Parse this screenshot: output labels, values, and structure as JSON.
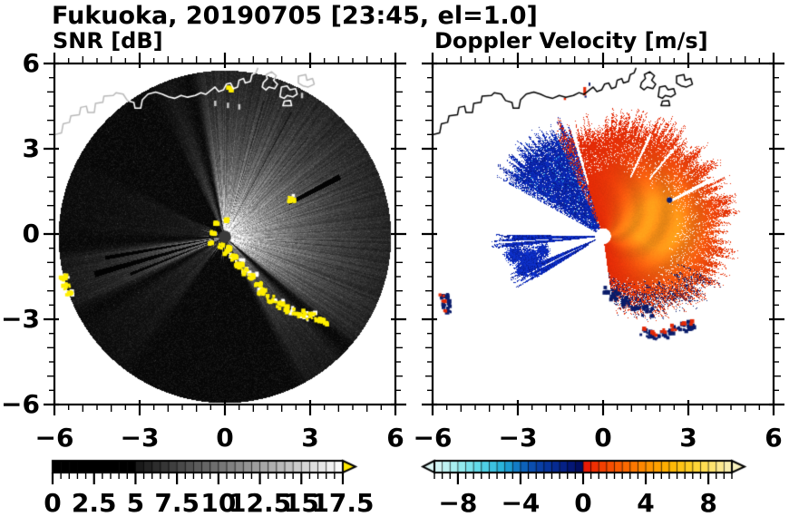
{
  "figure": {
    "title": "Fukuoka, 20190705 [23:45, el=1.0]",
    "background": "#ffffff"
  },
  "chart_data": {
    "type": "heatmap",
    "subtype": "dual_radar_ppi",
    "figure_title": "Fukuoka, 20190705 [23:45, el=1.0]",
    "station": "Fukuoka",
    "date": "20190705",
    "time": "23:45",
    "elevation_deg": 1.0,
    "axes": {
      "xlim": [
        -6,
        6
      ],
      "ylim": [
        -6,
        6
      ],
      "xticks": [
        -6,
        -3,
        0,
        3,
        6
      ],
      "xtick_labels": [
        "−6",
        "−3",
        "0",
        "3",
        "6"
      ],
      "yticks": [
        6,
        3,
        0,
        -3,
        -6
      ],
      "ytick_labels": [
        "6",
        "3",
        "0",
        "−3",
        "−6"
      ],
      "minor_tick_step": 0.5,
      "grid": false
    },
    "panels": [
      {
        "id": "snr",
        "title": "SNR [dB]",
        "colorbar": {
          "range": [
            0,
            17.5
          ],
          "major_ticks": [
            0,
            2.5,
            5,
            7.5,
            10,
            12.5,
            15,
            17.5
          ],
          "tick_labels": [
            "0",
            "2.5",
            "5",
            "7.5",
            "10",
            "12.5",
            "15",
            "17.5"
          ],
          "minor_step": 0.5,
          "palette": "grayscale black-to-white",
          "black_below": 5,
          "ramp": [
            [
              5,
              "#161616"
            ],
            [
              17.5,
              "#ffffff"
            ]
          ],
          "overflow_arrow_color": "#ffe800"
        },
        "radar": {
          "center": [
            0,
            -0.1
          ],
          "radius": 5.88,
          "fan_decay": 2.6,
          "echo_sectors": [
            {
              "from": -65,
              "to": -42,
              "amp": 0.5
            },
            {
              "from": -42,
              "to": 103,
              "amp": 0.95
            },
            {
              "from": 103,
              "to": 118,
              "amp": 0.3
            },
            {
              "from": 150,
              "to": 182,
              "amp": 0.1
            },
            {
              "from": 183,
              "to": 209,
              "amp": 0.55
            },
            {
              "from": 209,
              "to": 237,
              "amp": 0.16
            }
          ],
          "shadow_rays": [
            {
              "az": 27.5,
              "hw": 1.3,
              "rmin": 2.55,
              "rmax": 4.6,
              "mult": 0.07
            },
            {
              "az": 190,
              "hw": 0.9,
              "rmin": 0.4,
              "rmax": 4.3,
              "mult": 0.07
            },
            {
              "az": 196,
              "hw": 1.3,
              "rmin": 0.4,
              "rmax": 4.8,
              "mult": 0.07
            },
            {
              "az": 201.5,
              "hw": 0.8,
              "rmin": 0.6,
              "rmax": 3.6,
              "mult": 0.1
            },
            {
              "az": 62,
              "hw": 0.4,
              "rmin": 0.6,
              "rmax": 5.0,
              "mult": 0.55
            },
            {
              "az": 74,
              "hw": 0.35,
              "rmin": 0.8,
              "rmax": 5.0,
              "mult": 0.6
            },
            {
              "az": 50,
              "hw": 0.3,
              "rmin": 1.0,
              "rmax": 4.6,
              "mult": 0.6
            }
          ],
          "clutter_color": "#ffef00",
          "clutter_blobs": [
            [
              -0.12,
              -0.42,
              0.1,
              0
            ],
            [
              0.08,
              -0.62,
              0.12,
              1
            ],
            [
              0.3,
              -0.85,
              0.13,
              1
            ],
            [
              0.52,
              -1.08,
              0.14,
              1
            ],
            [
              0.72,
              -1.32,
              0.13,
              1
            ],
            [
              0.95,
              -1.52,
              0.12,
              1
            ],
            [
              1.18,
              -1.78,
              0.14,
              0
            ],
            [
              1.3,
              -2.05,
              0.13,
              1
            ],
            [
              1.58,
              -2.28,
              0.15,
              0
            ],
            [
              1.92,
              -2.5,
              0.16,
              1
            ],
            [
              2.3,
              -2.68,
              0.16,
              1
            ],
            [
              2.7,
              -2.82,
              0.17,
              1
            ],
            [
              3.05,
              -2.95,
              0.16,
              1
            ],
            [
              3.35,
              -3.06,
              0.13,
              0
            ],
            [
              3.54,
              -3.12,
              0.09,
              0
            ],
            [
              -5.72,
              -1.55,
              0.12,
              1
            ],
            [
              -5.62,
              -1.85,
              0.13,
              0
            ],
            [
              -5.5,
              -2.12,
              0.12,
              1
            ],
            [
              2.35,
              1.22,
              0.12,
              1
            ],
            [
              0.18,
              5.12,
              0.07,
              0
            ],
            [
              -0.42,
              0.05,
              0.06,
              0
            ],
            [
              -0.3,
              0.38,
              0.05,
              0
            ],
            [
              0.08,
              0.48,
              0.05,
              0
            ],
            [
              -0.5,
              -0.3,
              0.06,
              0
            ],
            [
              0.15,
              -0.5,
              0.06,
              0
            ]
          ],
          "ship_dots": [
            [
              -0.35,
              4.62
            ],
            [
              0.1,
              4.55
            ],
            [
              0.5,
              4.5
            ],
            [
              2.72,
              4.9
            ]
          ],
          "center_dot": {
            "color": "#3a3a3a",
            "radius": 0.22
          }
        }
      },
      {
        "id": "velocity",
        "title": "Doppler Velocity [m/s]",
        "colorbar": {
          "range": [
            -9.5,
            9.5
          ],
          "major_ticks": [
            -8,
            -4,
            0,
            4,
            8
          ],
          "tick_labels": [
            "−8",
            "−4",
            "0",
            "4",
            "8"
          ],
          "minor_step": 0.5,
          "palette_negative_stops": [
            [
              -9.5,
              "#def7f5"
            ],
            [
              -8,
              "#9eeef0"
            ],
            [
              -6.5,
              "#57d7e8"
            ],
            [
              -5,
              "#22acd8"
            ],
            [
              -4,
              "#0e6cc0"
            ],
            [
              -3,
              "#0a44aa"
            ],
            [
              -2,
              "#073098"
            ],
            [
              -1,
              "#051c80"
            ],
            [
              0,
              "#020a56"
            ]
          ],
          "palette_positive_stops": [
            [
              0,
              "#e61008"
            ],
            [
              1,
              "#f23a02"
            ],
            [
              2.5,
              "#fc6200"
            ],
            [
              4,
              "#ff8f00"
            ],
            [
              5.5,
              "#ffb400"
            ],
            [
              7,
              "#ffd22a"
            ],
            [
              8,
              "#ffe160"
            ],
            [
              9.5,
              "#f7f0bd"
            ]
          ]
        },
        "radar": {
          "center": [
            0,
            -0.08
          ],
          "center_dot": {
            "color": "#ffffff",
            "radius": 0.28
          },
          "red_fan": {
            "az_range": [
              -82,
              107
            ],
            "rmax_ctrl": [
              [
                -82,
                2.4
              ],
              [
                -60,
                3.1
              ],
              [
                -40,
                3.75
              ],
              [
                -15,
                4.2
              ],
              [
                10,
                4.45
              ],
              [
                35,
                4.55
              ],
              [
                60,
                4.35
              ],
              [
                85,
                4.15
              ],
              [
                107,
                3.8
              ]
            ],
            "base_color": "#e32806",
            "core_color": "#ff9418",
            "navy_color": "#0a1c6a"
          },
          "blue_wedge": {
            "az_range": [
              107,
              151
            ],
            "rmax": 4.15,
            "colors": [
              "#0b2cc0",
              "#0a24a6",
              "#071a8c"
            ],
            "light_dot_color": "#45c0e8"
          },
          "west_streaks": [
            {
              "from": 179,
              "to": 186.5,
              "rmax": 3.5,
              "gap": [
                183.1,
                183.8,
                1.3
              ]
            },
            {
              "from": 202,
              "to": 212,
              "rmax": 3.2,
              "gap": [
                206.2,
                207.2,
                0.8
              ]
            }
          ],
          "blue_patches": [
            [
              -2.6,
              -0.95,
              0.5
            ],
            [
              -3.1,
              -0.72,
              0.35
            ],
            [
              -2.15,
              -0.6,
              0.25
            ],
            [
              -2.9,
              -1.3,
              0.2
            ]
          ],
          "gap_rays": [
            {
              "az": 27.5,
              "hw": 1.0,
              "rmin": 2.7,
              "rmax": 4.4
            },
            {
              "az": 51,
              "hw": 0.6,
              "rmin": 2.6,
              "rmax": 3.95
            },
            {
              "az": 65,
              "hw": 0.7,
              "rmin": 2.3,
              "rmax": 4.0
            },
            {
              "az": 106,
              "hw": 0.9,
              "rmin": 1.9,
              "rmax": 6
            },
            {
              "az": 222,
              "hw": 14,
              "rmin": 0.28,
              "rmax": 0.6
            }
          ],
          "hard_target": {
            "pos": [
              2.35,
              1.2
            ],
            "radius": 0.1
          },
          "south_blobs": [
            [
              1.5,
              -3.5
            ],
            [
              1.85,
              -3.62
            ],
            [
              2.2,
              -3.56
            ],
            [
              2.55,
              -3.42
            ],
            [
              2.9,
              -3.3
            ],
            [
              3.12,
              -3.24
            ]
          ],
          "left_blobs": [
            [
              -5.62,
              -2.18
            ],
            [
              -5.55,
              -2.48
            ],
            [
              -5.48,
              -2.72
            ]
          ],
          "south_border_navy": [
            [
              0.5,
              -2.2
            ],
            [
              0.85,
              -2.38
            ],
            [
              1.2,
              -2.55
            ],
            [
              1.6,
              -2.75
            ],
            [
              0.2,
              -2.05
            ]
          ],
          "top_marks": [
            {
              "pos": [
                -0.65,
                5.05
              ],
              "color": "#e32806",
              "w": 0.1,
              "h": 0.3
            },
            {
              "pos": [
                -1.35,
                4.78
              ],
              "color": "#e32806",
              "w": 0.08,
              "h": 0.08
            },
            {
              "pos": [
                -0.62,
                4.86
              ],
              "color": "#0a1c6a",
              "w": 0.07,
              "h": 0.07
            },
            {
              "pos": [
                -0.48,
                5.3
              ],
              "color": "#0a1c6a",
              "w": 0.06,
              "h": 0.12
            }
          ]
        }
      }
    ],
    "map": {
      "coastline_color_right": "#000000",
      "coastline_color_left_inside": "#ffffff",
      "coastline_color_left_outside": "#b8b8b8",
      "coastline": [
        [
          -6.0,
          3.52
        ],
        [
          -5.78,
          3.58
        ],
        [
          -5.72,
          3.9
        ],
        [
          -5.5,
          3.95
        ],
        [
          -5.45,
          4.18
        ],
        [
          -5.15,
          4.22
        ],
        [
          -5.1,
          4.48
        ],
        [
          -4.9,
          4.52
        ],
        [
          -4.85,
          4.3
        ],
        [
          -4.62,
          4.3
        ],
        [
          -4.58,
          4.62
        ],
        [
          -4.32,
          4.66
        ],
        [
          -4.28,
          4.88
        ],
        [
          -3.95,
          4.9
        ],
        [
          -3.85,
          5.0
        ],
        [
          -3.6,
          4.95
        ],
        [
          -3.45,
          4.72
        ],
        [
          -3.22,
          4.65
        ],
        [
          -3.18,
          4.45
        ],
        [
          -2.98,
          4.45
        ],
        [
          -2.92,
          4.75
        ],
        [
          -2.72,
          4.95
        ],
        [
          -2.45,
          5.02
        ],
        [
          -2.22,
          4.95
        ],
        [
          -2.0,
          4.85
        ],
        [
          -1.78,
          4.8
        ],
        [
          -1.55,
          4.9
        ],
        [
          -1.32,
          4.84
        ],
        [
          -1.05,
          4.9
        ],
        [
          -0.85,
          5.0
        ],
        [
          -0.68,
          4.94
        ],
        [
          -0.5,
          5.08
        ],
        [
          -0.35,
          5.2
        ],
        [
          -0.22,
          5.04
        ],
        [
          -0.05,
          5.1
        ],
        [
          0.05,
          5.3
        ],
        [
          0.2,
          5.34
        ],
        [
          0.3,
          5.14
        ],
        [
          0.45,
          5.2
        ],
        [
          0.5,
          5.44
        ],
        [
          0.66,
          5.5
        ],
        [
          0.72,
          5.34
        ],
        [
          0.9,
          5.4
        ],
        [
          0.96,
          5.64
        ],
        [
          1.1,
          5.7
        ],
        [
          1.16,
          5.86
        ]
      ],
      "harbors": [
        [
          [
            1.32,
            5.2
          ],
          [
            1.45,
            5.1
          ],
          [
            1.56,
            5.2
          ],
          [
            1.76,
            5.14
          ],
          [
            1.86,
            5.3
          ],
          [
            1.72,
            5.44
          ],
          [
            1.82,
            5.6
          ],
          [
            1.65,
            5.74
          ],
          [
            1.46,
            5.64
          ],
          [
            1.5,
            5.5
          ],
          [
            1.36,
            5.36
          ],
          [
            1.32,
            5.2
          ]
        ],
        [
          [
            1.95,
            4.86
          ],
          [
            2.1,
            4.8
          ],
          [
            2.2,
            4.9
          ],
          [
            2.4,
            4.85
          ],
          [
            2.56,
            4.95
          ],
          [
            2.5,
            5.14
          ],
          [
            2.3,
            5.1
          ],
          [
            2.2,
            5.24
          ],
          [
            2.0,
            5.2
          ],
          [
            1.95,
            4.86
          ]
        ],
        [
          [
            2.6,
            5.34
          ],
          [
            2.76,
            5.24
          ],
          [
            2.95,
            5.2
          ],
          [
            3.16,
            5.3
          ],
          [
            3.1,
            5.5
          ],
          [
            2.9,
            5.44
          ],
          [
            2.86,
            5.64
          ],
          [
            2.6,
            5.58
          ],
          [
            2.6,
            5.34
          ]
        ],
        [
          [
            2.05,
            4.54
          ],
          [
            2.1,
            4.7
          ],
          [
            2.32,
            4.72
          ],
          [
            2.36,
            4.54
          ],
          [
            2.05,
            4.54
          ]
        ]
      ]
    }
  }
}
